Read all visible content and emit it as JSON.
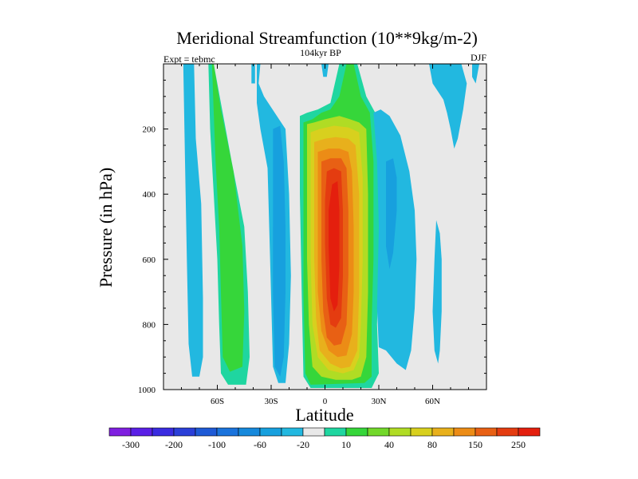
{
  "chart_data": {
    "type": "heatmap",
    "title": "Meridional Streamfunction (10**9kg/m-2)",
    "left_label": "Expt = tebmc",
    "center_label": "104kyr BP",
    "right_label": "DJF",
    "xlabel": "Latitude",
    "ylabel": "Pressure (in hPa)",
    "xlim": [
      -90,
      90
    ],
    "ylim": [
      1000,
      0
    ],
    "x_ticks": [
      {
        "value": -60,
        "label": "60S"
      },
      {
        "value": -30,
        "label": "30S"
      },
      {
        "value": 0,
        "label": "0"
      },
      {
        "value": 30,
        "label": "30N"
      },
      {
        "value": 60,
        "label": "60N"
      }
    ],
    "y_ticks": [
      {
        "value": 200,
        "label": "200"
      },
      {
        "value": 400,
        "label": "400"
      },
      {
        "value": 600,
        "label": "600"
      },
      {
        "value": 800,
        "label": "800"
      },
      {
        "value": 1000,
        "label": "1000"
      }
    ],
    "colorbar": {
      "colors": [
        "#7f1fe0",
        "#5a1fe6",
        "#3a2be0",
        "#2a3fd8",
        "#1e5ad6",
        "#1a73dc",
        "#1689dc",
        "#17a0de",
        "#22b8e0",
        "#e8e8e8",
        "#1fd6a0",
        "#36d63a",
        "#72d82a",
        "#b0dc24",
        "#d8d01e",
        "#e8b01c",
        "#ec8c16",
        "#e86014",
        "#e43c10",
        "#e41f0e"
      ],
      "labels": [
        {
          "after": 1,
          "text": "-300"
        },
        {
          "after": 3,
          "text": "-200"
        },
        {
          "after": 5,
          "text": "-100"
        },
        {
          "after": 7,
          "text": "-60"
        },
        {
          "after": 9,
          "text": "-20"
        },
        {
          "after": 11,
          "text": "10"
        },
        {
          "after": 13,
          "text": "40"
        },
        {
          "after": 15,
          "text": "80"
        },
        {
          "after": 17,
          "text": "150"
        },
        {
          "after": 19,
          "text": "250"
        }
      ]
    },
    "regions": [
      {
        "value": -20,
        "color": "#22b8e0",
        "points": [
          [
            -79,
            0
          ],
          [
            -73,
            0
          ],
          [
            -72,
            230
          ],
          [
            -69,
            430
          ],
          [
            -68,
            720
          ],
          [
            -68,
            900
          ],
          [
            -70,
            960
          ],
          [
            -74,
            960
          ],
          [
            -76,
            860
          ],
          [
            -77,
            600
          ],
          [
            -78,
            300
          ]
        ]
      },
      {
        "value": 10,
        "color": "#1fd6a0",
        "points": [
          [
            -65,
            0
          ],
          [
            -62,
            0
          ],
          [
            -58,
            120
          ],
          [
            -52,
            300
          ],
          [
            -45,
            500
          ],
          [
            -43,
            700
          ],
          [
            -42,
            900
          ],
          [
            -44,
            985
          ],
          [
            -54,
            985
          ],
          [
            -58,
            950
          ],
          [
            -59,
            800
          ],
          [
            -60,
            600
          ],
          [
            -62,
            400
          ],
          [
            -64,
            200
          ]
        ]
      },
      {
        "value": 40,
        "color": "#36d63a",
        "points": [
          [
            -63,
            0
          ],
          [
            -62,
            0
          ],
          [
            -58,
            140
          ],
          [
            -51,
            330
          ],
          [
            -46,
            560
          ],
          [
            -45,
            760
          ],
          [
            -46,
            930
          ],
          [
            -53,
            945
          ],
          [
            -57,
            900
          ],
          [
            -58,
            700
          ],
          [
            -59,
            500
          ],
          [
            -61,
            300
          ],
          [
            -62,
            150
          ]
        ]
      },
      {
        "value": -20,
        "color": "#22b8e0",
        "points": [
          [
            -38,
            0
          ],
          [
            -36,
            0
          ],
          [
            -37,
            60
          ],
          [
            -34,
            100
          ],
          [
            -28,
            150
          ],
          [
            -22,
            200
          ],
          [
            -20,
            400
          ],
          [
            -19,
            650
          ],
          [
            -20,
            860
          ],
          [
            -22,
            980
          ],
          [
            -26,
            980
          ],
          [
            -29,
            930
          ],
          [
            -30,
            720
          ],
          [
            -31,
            520
          ],
          [
            -32,
            320
          ],
          [
            -36,
            200
          ],
          [
            -38,
            120
          ]
        ]
      },
      {
        "value": -60,
        "color": "#17a0de",
        "points": [
          [
            -29,
            200
          ],
          [
            -25,
            190
          ],
          [
            -23,
            300
          ],
          [
            -22,
            500
          ],
          [
            -22,
            700
          ],
          [
            -23,
            900
          ],
          [
            -25,
            960
          ],
          [
            -28,
            930
          ],
          [
            -29,
            700
          ],
          [
            -29,
            450
          ]
        ]
      },
      {
        "value": 10,
        "color": "#1fd6a0",
        "points": [
          [
            -14,
            160
          ],
          [
            -10,
            150
          ],
          [
            -4,
            140
          ],
          [
            3,
            120
          ],
          [
            8,
            0
          ],
          [
            18,
            0
          ],
          [
            23,
            100
          ],
          [
            28,
            150
          ],
          [
            31,
            300
          ],
          [
            30,
            600
          ],
          [
            29,
            800
          ],
          [
            30,
            950
          ],
          [
            26,
            995
          ],
          [
            -8,
            995
          ],
          [
            -12,
            960
          ],
          [
            -13,
            700
          ],
          [
            -14,
            400
          ]
        ]
      },
      {
        "value": 40,
        "color": "#36d63a",
        "points": [
          [
            -12,
            180
          ],
          [
            -7,
            170
          ],
          [
            -2,
            150
          ],
          [
            3,
            140
          ],
          [
            8,
            100
          ],
          [
            12,
            0
          ],
          [
            16,
            0
          ],
          [
            20,
            100
          ],
          [
            25,
            150
          ],
          [
            27,
            300
          ],
          [
            27,
            600
          ],
          [
            26,
            800
          ],
          [
            26,
            960
          ],
          [
            22,
            980
          ],
          [
            -8,
            985
          ],
          [
            -11,
            950
          ],
          [
            -12,
            700
          ],
          [
            -12,
            400
          ]
        ]
      },
      {
        "value": 80,
        "color": "#b0dc24",
        "points": [
          [
            -10,
            185
          ],
          [
            -6,
            180
          ],
          [
            0,
            170
          ],
          [
            8,
            160
          ],
          [
            14,
            170
          ],
          [
            19,
            180
          ],
          [
            23,
            200
          ],
          [
            24,
            400
          ],
          [
            24,
            700
          ],
          [
            23,
            900
          ],
          [
            20,
            960
          ],
          [
            15,
            970
          ],
          [
            6,
            970
          ],
          [
            -2,
            960
          ],
          [
            -7,
            930
          ],
          [
            -9,
            800
          ],
          [
            -10,
            600
          ],
          [
            -10,
            400
          ]
        ]
      },
      {
        "value": 120,
        "color": "#d8d01e",
        "points": [
          [
            -8,
            210
          ],
          [
            -3,
            200
          ],
          [
            5,
            190
          ],
          [
            13,
            195
          ],
          [
            19,
            210
          ],
          [
            21,
            350
          ],
          [
            21,
            600
          ],
          [
            20,
            800
          ],
          [
            19,
            900
          ],
          [
            16,
            940
          ],
          [
            10,
            950
          ],
          [
            2,
            940
          ],
          [
            -4,
            900
          ],
          [
            -7,
            800
          ],
          [
            -8,
            600
          ],
          [
            -8,
            400
          ]
        ]
      },
      {
        "value": 150,
        "color": "#e8b01c",
        "points": [
          [
            -6,
            240
          ],
          [
            0,
            230
          ],
          [
            6,
            225
          ],
          [
            13,
            230
          ],
          [
            17,
            250
          ],
          [
            19,
            400
          ],
          [
            19,
            700
          ],
          [
            18,
            880
          ],
          [
            14,
            930
          ],
          [
            9,
            935
          ],
          [
            3,
            920
          ],
          [
            -3,
            880
          ],
          [
            -5,
            780
          ],
          [
            -6,
            600
          ],
          [
            -6,
            400
          ]
        ]
      },
      {
        "value": 200,
        "color": "#ec8c16",
        "points": [
          [
            -4,
            270
          ],
          [
            2,
            260
          ],
          [
            8,
            260
          ],
          [
            13,
            270
          ],
          [
            15,
            330
          ],
          [
            16,
            500
          ],
          [
            16,
            700
          ],
          [
            15,
            830
          ],
          [
            12,
            895
          ],
          [
            7,
            900
          ],
          [
            2,
            880
          ],
          [
            -2,
            820
          ],
          [
            -4,
            700
          ],
          [
            -4,
            500
          ]
        ]
      },
      {
        "value": 250,
        "color": "#e86014",
        "points": [
          [
            -2,
            300
          ],
          [
            3,
            290
          ],
          [
            9,
            290
          ],
          [
            12,
            320
          ],
          [
            13,
            450
          ],
          [
            13,
            650
          ],
          [
            12,
            800
          ],
          [
            9,
            860
          ],
          [
            5,
            865
          ],
          [
            1,
            840
          ],
          [
            -1,
            760
          ],
          [
            -2,
            600
          ],
          [
            -2,
            420
          ]
        ]
      },
      {
        "value": 300,
        "color": "#e43c10",
        "points": [
          [
            1,
            330
          ],
          [
            5,
            320
          ],
          [
            9,
            330
          ],
          [
            10,
            450
          ],
          [
            10,
            650
          ],
          [
            9,
            780
          ],
          [
            6,
            810
          ],
          [
            3,
            800
          ],
          [
            1,
            720
          ],
          [
            0,
            550
          ],
          [
            0,
            420
          ]
        ]
      },
      {
        "value": 350,
        "color": "#e41f0e",
        "points": [
          [
            4,
            370
          ],
          [
            7,
            360
          ],
          [
            8,
            450
          ],
          [
            8,
            620
          ],
          [
            7,
            740
          ],
          [
            5,
            760
          ],
          [
            3,
            720
          ],
          [
            2,
            560
          ],
          [
            2,
            450
          ]
        ]
      },
      {
        "value": -20,
        "color": "#22b8e0",
        "points": [
          [
            -2,
            0
          ],
          [
            2,
            0
          ],
          [
            1,
            40
          ],
          [
            -1,
            40
          ]
        ]
      },
      {
        "value": -20,
        "color": "#22b8e0",
        "points": [
          [
            -41,
            0
          ],
          [
            -39,
            0
          ],
          [
            -39,
            60
          ],
          [
            -41,
            60
          ]
        ]
      },
      {
        "value": -20,
        "color": "#22b8e0",
        "points": [
          [
            27,
            150
          ],
          [
            31,
            140
          ],
          [
            36,
            160
          ],
          [
            42,
            220
          ],
          [
            47,
            330
          ],
          [
            50,
            450
          ],
          [
            51,
            600
          ],
          [
            50,
            750
          ],
          [
            48,
            880
          ],
          [
            45,
            940
          ],
          [
            40,
            920
          ],
          [
            34,
            880
          ],
          [
            30,
            870
          ],
          [
            29,
            750
          ],
          [
            30,
            500
          ],
          [
            29,
            300
          ]
        ]
      },
      {
        "value": -60,
        "color": "#17a0de",
        "points": [
          [
            34,
            300
          ],
          [
            38,
            290
          ],
          [
            40,
            350
          ],
          [
            40,
            450
          ],
          [
            38,
            580
          ],
          [
            36,
            630
          ],
          [
            34,
            560
          ],
          [
            34,
            420
          ]
        ]
      },
      {
        "value": -20,
        "color": "#22b8e0",
        "points": [
          [
            58,
            0
          ],
          [
            76,
            0
          ],
          [
            79,
            60
          ],
          [
            77,
            140
          ],
          [
            74,
            230
          ],
          [
            72,
            260
          ],
          [
            70,
            200
          ],
          [
            68,
            150
          ],
          [
            66,
            110
          ],
          [
            60,
            60
          ]
        ]
      },
      {
        "value": -20,
        "color": "#22b8e0",
        "points": [
          [
            82,
            0
          ],
          [
            86,
            0
          ],
          [
            84,
            60
          ],
          [
            82,
            40
          ]
        ]
      },
      {
        "value": -20,
        "color": "#22b8e0",
        "points": [
          [
            62,
            480
          ],
          [
            64,
            520
          ],
          [
            65,
            600
          ],
          [
            65,
            760
          ],
          [
            64,
            880
          ],
          [
            63,
            920
          ],
          [
            61,
            880
          ],
          [
            60,
            760
          ],
          [
            61,
            600
          ]
        ]
      }
    ]
  }
}
